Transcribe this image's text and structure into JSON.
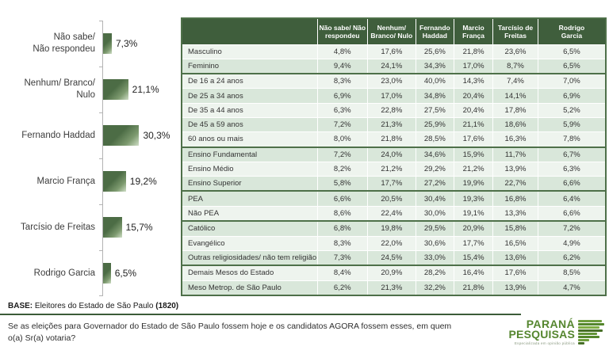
{
  "colors": {
    "header_green": "#3f5e3c",
    "group_border_green": "#4e7049",
    "row_pale": "#eef4ee",
    "row_green": "#d9e7da",
    "bar_green": "#4c6c45",
    "logo_green": "#55862f"
  },
  "chart_data": [
    {
      "type": "bar",
      "orientation": "horizontal",
      "title": "",
      "xlabel": "",
      "ylabel": "",
      "grid": false,
      "xlim": [
        0,
        35
      ],
      "categories": [
        "Não sabe/ Não respondeu",
        "Nenhum/ Branco/ Nulo",
        "Fernando Haddad",
        "Marcio França",
        "Tarcísio de Freitas",
        "Rodrigo Garcia"
      ],
      "label_lines": [
        [
          "Não sabe/",
          "Não respondeu"
        ],
        [
          "Nenhum/ Branco/",
          "Nulo"
        ],
        [
          "Fernando Haddad"
        ],
        [
          "Marcio França"
        ],
        [
          "Tarcísio de Freitas"
        ],
        [
          "Rodrigo Garcia"
        ]
      ],
      "values": [
        7.3,
        21.1,
        30.3,
        19.2,
        15.7,
        6.5
      ],
      "value_labels": [
        "7,3%",
        "21,1%",
        "30,3%",
        "19,2%",
        "15,7%",
        "6,5%"
      ]
    },
    {
      "type": "table",
      "columns": [
        "Não sabe/ Não respondeu",
        "Nenhum/ Branco/ Nulo",
        "Fernando Haddad",
        "Marcio França",
        "Tarcísio de Freitas",
        "Rodrigo Garcia"
      ],
      "columns_lines": [
        [
          "Não sabe/ Não",
          "respondeu"
        ],
        [
          "Nenhum/",
          "Branco/ Nulo"
        ],
        [
          "Fernando",
          "Haddad"
        ],
        [
          "Marcio",
          "França"
        ],
        [
          "Tarcísio de",
          "Freitas"
        ],
        [
          "Rodrigo",
          "Garcia"
        ]
      ],
      "groups": [
        {
          "rows": [
            {
              "label": "Masculino",
              "shade": "pale",
              "values": [
                "4,8%",
                "17,6%",
                "25,6%",
                "21,8%",
                "23,6%",
                "6,5%"
              ]
            },
            {
              "label": "Feminino",
              "shade": "green",
              "values": [
                "9,4%",
                "24,1%",
                "34,3%",
                "17,0%",
                "8,7%",
                "6,5%"
              ]
            }
          ]
        },
        {
          "rows": [
            {
              "label": "De 16 a 24 anos",
              "shade": "pale",
              "values": [
                "8,3%",
                "23,0%",
                "40,0%",
                "14,3%",
                "7,4%",
                "7,0%"
              ]
            },
            {
              "label": "De 25 a 34 anos",
              "shade": "green",
              "values": [
                "6,9%",
                "17,0%",
                "34,8%",
                "20,4%",
                "14,1%",
                "6,9%"
              ]
            },
            {
              "label": "De 35 a 44 anos",
              "shade": "pale",
              "values": [
                "6,3%",
                "22,8%",
                "27,5%",
                "20,4%",
                "17,8%",
                "5,2%"
              ]
            },
            {
              "label": "De 45 a 59 anos",
              "shade": "green",
              "values": [
                "7,2%",
                "21,3%",
                "25,9%",
                "21,1%",
                "18,6%",
                "5,9%"
              ]
            },
            {
              "label": "60 anos ou mais",
              "shade": "pale",
              "values": [
                "8,0%",
                "21,8%",
                "28,5%",
                "17,6%",
                "16,3%",
                "7,8%"
              ]
            }
          ]
        },
        {
          "rows": [
            {
              "label": "Ensino Fundamental",
              "shade": "green",
              "values": [
                "7,2%",
                "24,0%",
                "34,6%",
                "15,9%",
                "11,7%",
                "6,7%"
              ]
            },
            {
              "label": "Ensino Médio",
              "shade": "pale",
              "values": [
                "8,2%",
                "21,2%",
                "29,2%",
                "21,2%",
                "13,9%",
                "6,3%"
              ]
            },
            {
              "label": "Ensino Superior",
              "shade": "green",
              "values": [
                "5,8%",
                "17,7%",
                "27,2%",
                "19,9%",
                "22,7%",
                "6,6%"
              ]
            }
          ]
        },
        {
          "rows": [
            {
              "label": "PEA",
              "shade": "green",
              "values": [
                "6,6%",
                "20,5%",
                "30,4%",
                "19,3%",
                "16,8%",
                "6,4%"
              ]
            },
            {
              "label": "Não PEA",
              "shade": "pale",
              "values": [
                "8,6%",
                "22,4%",
                "30,0%",
                "19,1%",
                "13,3%",
                "6,6%"
              ]
            }
          ]
        },
        {
          "rows": [
            {
              "label": "Católico",
              "shade": "green",
              "values": [
                "6,8%",
                "19,8%",
                "29,5%",
                "20,9%",
                "15,8%",
                "7,2%"
              ]
            },
            {
              "label": "Evangélico",
              "shade": "pale",
              "values": [
                "8,3%",
                "22,0%",
                "30,6%",
                "17,7%",
                "16,5%",
                "4,9%"
              ]
            },
            {
              "label": "Outras religiosidades/ não tem religião",
              "shade": "green",
              "values": [
                "7,3%",
                "24,5%",
                "33,0%",
                "15,4%",
                "13,6%",
                "6,2%"
              ]
            }
          ]
        },
        {
          "rows": [
            {
              "label": "Demais Mesos do Estado",
              "shade": "pale",
              "values": [
                "8,4%",
                "20,9%",
                "28,2%",
                "16,4%",
                "17,6%",
                "8,5%"
              ]
            },
            {
              "label": "Meso Metrop. de São Paulo",
              "shade": "green",
              "values": [
                "6,2%",
                "21,3%",
                "32,2%",
                "21,8%",
                "13,9%",
                "4,7%"
              ]
            }
          ]
        }
      ]
    }
  ],
  "footer": {
    "base_label": "BASE:",
    "base_text": " Eleitores do Estado de São Paulo ",
    "base_count": "(1820)",
    "question": "Se as eleições para Governador do Estado de São Paulo fossem hoje e os candidatos AGORA fossem esses, em quem o(a) Sr(a) votaria?"
  },
  "logo": {
    "line1": "PARANÁ",
    "line2": "PESQUISAS",
    "tagline": "Especializada em opinião pública"
  }
}
